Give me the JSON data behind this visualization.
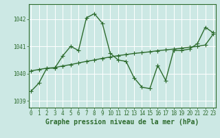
{
  "x": [
    0,
    1,
    2,
    3,
    4,
    5,
    6,
    7,
    8,
    9,
    10,
    11,
    12,
    13,
    14,
    15,
    16,
    17,
    18,
    19,
    20,
    21,
    22,
    23
  ],
  "y_main": [
    1039.35,
    1039.65,
    1040.2,
    1040.2,
    1040.65,
    1041.0,
    1040.85,
    1042.05,
    1042.2,
    1041.85,
    1040.75,
    1040.5,
    1040.45,
    1039.85,
    1039.5,
    1039.45,
    1040.3,
    1039.75,
    1040.85,
    1040.85,
    1040.9,
    1041.1,
    1041.7,
    1041.5
  ],
  "y_trend": [
    1040.1,
    1040.15,
    1040.2,
    1040.22,
    1040.28,
    1040.33,
    1040.39,
    1040.45,
    1040.5,
    1040.56,
    1040.61,
    1040.66,
    1040.7,
    1040.74,
    1040.77,
    1040.8,
    1040.84,
    1040.87,
    1040.9,
    1040.93,
    1040.97,
    1041.0,
    1041.05,
    1041.45
  ],
  "line_color": "#2d6b2d",
  "background_color": "#cce8e4",
  "grid_color": "#b8d8d4",
  "border_color": "#2d6b2d",
  "ylabel_ticks": [
    1039,
    1040,
    1041,
    1042
  ],
  "xlabel_ticks": [
    0,
    1,
    2,
    3,
    4,
    5,
    6,
    7,
    8,
    9,
    10,
    11,
    12,
    13,
    14,
    15,
    16,
    17,
    18,
    19,
    20,
    21,
    22,
    23
  ],
  "ylim": [
    1038.75,
    1042.55
  ],
  "xlim": [
    -0.3,
    23.3
  ],
  "xlabel": "Graphe pression niveau de la mer (hPa)",
  "tick_fontsize": 5.5,
  "label_fontsize": 7.0,
  "marker_size": 4.0,
  "line_width": 1.0
}
